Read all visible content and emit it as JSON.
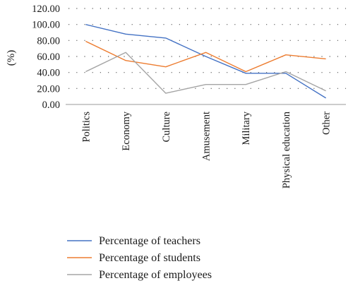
{
  "chart_data": {
    "type": "line",
    "ylabel": "(%)",
    "xlabel": "",
    "ylim": [
      0,
      120
    ],
    "yticks": [
      "0.00",
      "20.00",
      "40.00",
      "60.00",
      "80.00",
      "100.00",
      "120.00"
    ],
    "categories": [
      "Politics",
      "Economy",
      "Culture",
      "Amusement",
      "Military",
      "Physical education",
      "Other"
    ],
    "grid": "dotted horizontal",
    "legend_placement": "bottom",
    "series": [
      {
        "name": "Percentage of teachers",
        "color": "#4472c4",
        "values": [
          100,
          88,
          83,
          60,
          39,
          39,
          8
        ]
      },
      {
        "name": "Percentage of students",
        "color": "#ed7d31",
        "values": [
          79,
          55,
          47,
          65,
          41,
          62,
          57
        ]
      },
      {
        "name": "Percentage of employees",
        "color": "#a5a5a5",
        "values": [
          41,
          65,
          14,
          25,
          25,
          41,
          17
        ]
      }
    ]
  }
}
